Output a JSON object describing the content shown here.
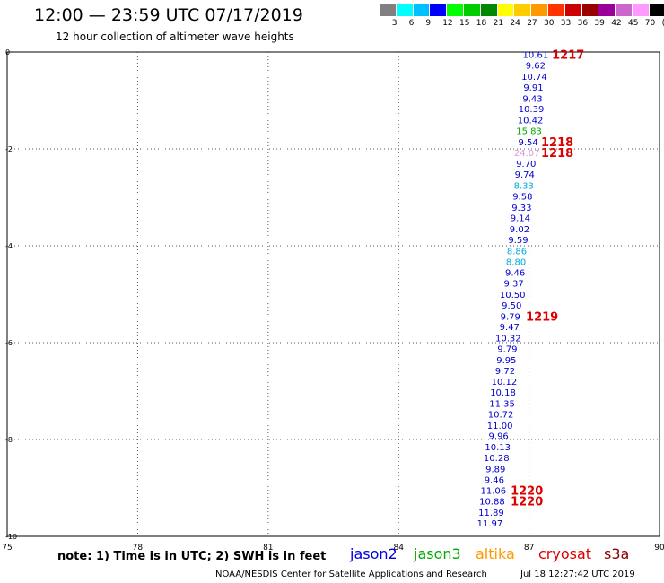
{
  "header": {
    "title": "12:00 — 23:59 UTC 07/17/2019",
    "subtitle": "12 hour collection of altimeter wave heights"
  },
  "legend": {
    "colors": [
      "#808080",
      "#00ffff",
      "#00bfff",
      "#0000ff",
      "#00ff00",
      "#00cc00",
      "#008800",
      "#ffff00",
      "#ffcc00",
      "#ff9900",
      "#ff3300",
      "#cc0000",
      "#990000",
      "#990099",
      "#cc66cc",
      "#ff99ff",
      "#000000"
    ],
    "labels": [
      "3",
      "6",
      "9",
      "12",
      "15",
      "18",
      "21",
      "24",
      "27",
      "30",
      "33",
      "36",
      "39",
      "42",
      "45",
      "70",
      "(ft)"
    ]
  },
  "chart_data": {
    "type": "scatter",
    "title": "12:00 — 23:59 UTC 07/17/2019",
    "xlim": [
      75,
      90
    ],
    "ylim": [
      -10,
      0
    ],
    "x_ticks": [
      "75",
      "78",
      "81",
      "84",
      "87",
      "90"
    ],
    "y_ticks": [
      "0",
      "-2",
      "-4",
      "-6",
      "-8",
      "-10"
    ],
    "grid": true,
    "swh_points": [
      {
        "x": 87.15,
        "y": -0.05,
        "label": "10.61",
        "color": "#0000cc"
      },
      {
        "x": 87.15,
        "y": -0.27,
        "label": "9.62",
        "color": "#0000cc"
      },
      {
        "x": 87.12,
        "y": -0.5,
        "label": "10.74",
        "color": "#0000cc"
      },
      {
        "x": 87.1,
        "y": -0.72,
        "label": "9.91",
        "color": "#0000cc"
      },
      {
        "x": 87.08,
        "y": -0.95,
        "label": "9.43",
        "color": "#0000cc"
      },
      {
        "x": 87.05,
        "y": -1.17,
        "label": "10.39",
        "color": "#0000cc"
      },
      {
        "x": 87.03,
        "y": -1.4,
        "label": "10.42",
        "color": "#0000cc"
      },
      {
        "x": 87.0,
        "y": -1.62,
        "label": "15.83",
        "color": "#00aa00"
      },
      {
        "x": 86.98,
        "y": -1.85,
        "label": "9.54",
        "color": "#0000cc"
      },
      {
        "x": 86.95,
        "y": -2.07,
        "label": "24.07",
        "color": "#dd99dd"
      },
      {
        "x": 86.93,
        "y": -2.3,
        "label": "9.70",
        "color": "#0000cc"
      },
      {
        "x": 86.9,
        "y": -2.52,
        "label": "9.74",
        "color": "#0000cc"
      },
      {
        "x": 86.88,
        "y": -2.75,
        "label": "8.33",
        "color": "#00aadd"
      },
      {
        "x": 86.85,
        "y": -2.97,
        "label": "9.58",
        "color": "#0000cc"
      },
      {
        "x": 86.83,
        "y": -3.2,
        "label": "9.33",
        "color": "#0000cc"
      },
      {
        "x": 86.8,
        "y": -3.42,
        "label": "9.14",
        "color": "#0000cc"
      },
      {
        "x": 86.78,
        "y": -3.65,
        "label": "9.02",
        "color": "#0000cc"
      },
      {
        "x": 86.75,
        "y": -3.87,
        "label": "9.59",
        "color": "#0000cc"
      },
      {
        "x": 86.72,
        "y": -4.1,
        "label": "8.86",
        "color": "#00aadd"
      },
      {
        "x": 86.7,
        "y": -4.32,
        "label": "8.80",
        "color": "#00aadd"
      },
      {
        "x": 86.68,
        "y": -4.55,
        "label": "9.46",
        "color": "#0000cc"
      },
      {
        "x": 86.65,
        "y": -4.77,
        "label": "9.37",
        "color": "#0000cc"
      },
      {
        "x": 86.62,
        "y": -5.0,
        "label": "10.50",
        "color": "#0000cc"
      },
      {
        "x": 86.6,
        "y": -5.22,
        "label": "9.50",
        "color": "#0000cc"
      },
      {
        "x": 86.57,
        "y": -5.45,
        "label": "9.79",
        "color": "#0000cc"
      },
      {
        "x": 86.55,
        "y": -5.67,
        "label": "9.47",
        "color": "#0000cc"
      },
      {
        "x": 86.52,
        "y": -5.9,
        "label": "10.32",
        "color": "#0000cc"
      },
      {
        "x": 86.5,
        "y": -6.12,
        "label": "9.79",
        "color": "#0000cc"
      },
      {
        "x": 86.48,
        "y": -6.35,
        "label": "9.95",
        "color": "#0000cc"
      },
      {
        "x": 86.45,
        "y": -6.57,
        "label": "9.72",
        "color": "#0000cc"
      },
      {
        "x": 86.43,
        "y": -6.8,
        "label": "10.12",
        "color": "#0000cc"
      },
      {
        "x": 86.4,
        "y": -7.02,
        "label": "10.18",
        "color": "#0000cc"
      },
      {
        "x": 86.38,
        "y": -7.25,
        "label": "11.35",
        "color": "#0000cc"
      },
      {
        "x": 86.35,
        "y": -7.47,
        "label": "10.72",
        "color": "#0000cc"
      },
      {
        "x": 86.33,
        "y": -7.7,
        "label": "11.00",
        "color": "#0000cc"
      },
      {
        "x": 86.3,
        "y": -7.92,
        "label": "9.96",
        "color": "#0000cc"
      },
      {
        "x": 86.28,
        "y": -8.15,
        "label": "10.13",
        "color": "#0000cc"
      },
      {
        "x": 86.25,
        "y": -8.37,
        "label": "10.28",
        "color": "#0000cc"
      },
      {
        "x": 86.23,
        "y": -8.6,
        "label": "9.89",
        "color": "#0000cc"
      },
      {
        "x": 86.2,
        "y": -8.82,
        "label": "9.46",
        "color": "#0000cc"
      },
      {
        "x": 86.18,
        "y": -9.05,
        "label": "11.06",
        "color": "#0000cc"
      },
      {
        "x": 86.15,
        "y": -9.27,
        "label": "10.88",
        "color": "#0000cc"
      },
      {
        "x": 86.13,
        "y": -9.5,
        "label": "11.89",
        "color": "#0000cc"
      },
      {
        "x": 86.1,
        "y": -9.72,
        "label": "11.97",
        "color": "#0000cc"
      }
    ],
    "time_labels": [
      {
        "x": 87.9,
        "y": -0.05,
        "label": "1217"
      },
      {
        "x": 87.65,
        "y": -1.85,
        "label": "1218"
      },
      {
        "x": 87.65,
        "y": -2.07,
        "label": "1218"
      },
      {
        "x": 87.3,
        "y": -5.45,
        "label": "1219"
      },
      {
        "x": 86.95,
        "y": -9.05,
        "label": "1220"
      },
      {
        "x": 86.95,
        "y": -9.27,
        "label": "1220"
      }
    ]
  },
  "footer": {
    "note": "note:  1) Time is in UTC;  2) SWH is in feet",
    "satellites": [
      {
        "name": "jason2",
        "color": "#0000dd"
      },
      {
        "name": "jason3",
        "color": "#00aa00"
      },
      {
        "name": "altika",
        "color": "#ff9900"
      },
      {
        "name": "cryosat",
        "color": "#dd0000"
      },
      {
        "name": "s3a",
        "color": "#880000"
      }
    ],
    "credit": "NOAA/NESDIS Center for Satellite Applications and Research",
    "timestamp": "Jul 18 12:27:42 UTC 2019"
  }
}
